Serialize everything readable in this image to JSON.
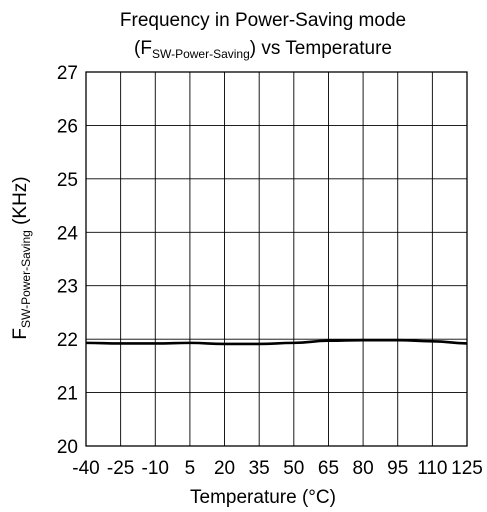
{
  "chart_data": {
    "type": "line",
    "title": {
      "line1": "Frequency in Power-Saving mode",
      "line2_prefix": "(F",
      "line2_subscript": "SW-Power-Saving",
      "line2_suffix": ") vs Temperature"
    },
    "xlabel": "Temperature (°C)",
    "ylabel": {
      "main": "F",
      "subscript": "SW-Power-Saving",
      "suffix": " (KHz)"
    },
    "x_ticks": [
      "-40",
      "-25",
      "-10",
      "5",
      "20",
      "35",
      "50",
      "65",
      "80",
      "95",
      "110",
      "125"
    ],
    "y_ticks": [
      "20",
      "21",
      "22",
      "23",
      "24",
      "25",
      "26",
      "27"
    ],
    "xlim": [
      -40,
      125
    ],
    "ylim": [
      20,
      27
    ],
    "grid": true,
    "series": [
      {
        "x": [
          -40,
          -25,
          -10,
          5,
          20,
          35,
          50,
          65,
          80,
          95,
          110,
          125
        ],
        "y": [
          21.93,
          21.92,
          21.92,
          21.93,
          21.91,
          21.91,
          21.93,
          21.97,
          21.98,
          21.98,
          21.96,
          21.92
        ]
      }
    ],
    "line_color": "#000000"
  }
}
